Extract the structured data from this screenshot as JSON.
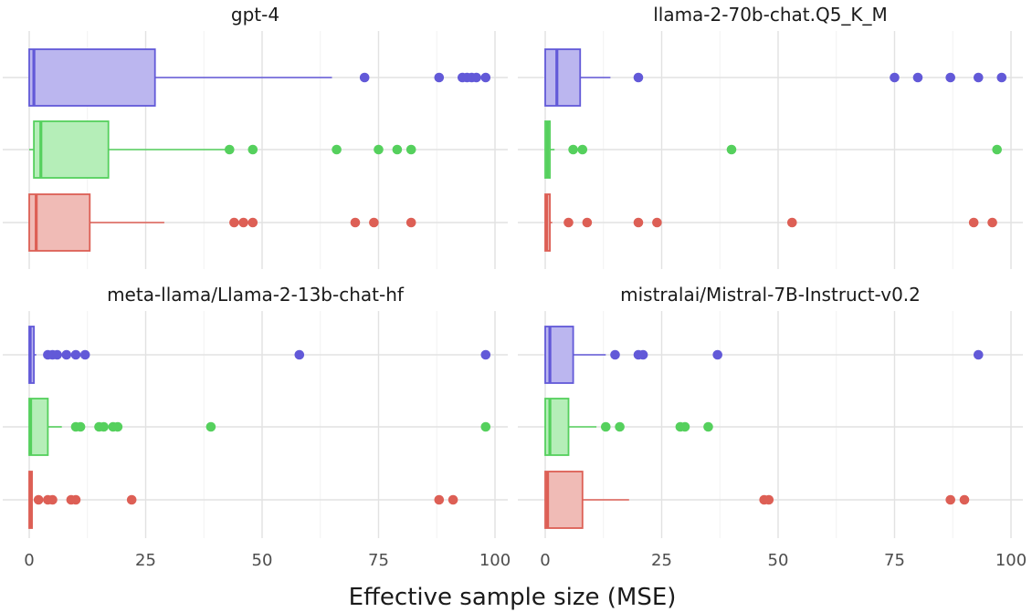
{
  "chart_data": {
    "type": "boxplot",
    "xlabel": "Effective sample size (MSE)",
    "ylabel": "",
    "xlim": [
      -1,
      102
    ],
    "x_ticks": [
      "0",
      "25",
      "50",
      "75",
      "100"
    ],
    "x_tick_values": [
      0,
      25,
      50,
      75,
      100
    ],
    "grid": true,
    "orientation": "horizontal",
    "series_colors": {
      "blue": "#6259d8",
      "green": "#55d05d",
      "red": "#dd5f55"
    },
    "series_fills": {
      "blue": "#bbb6ef",
      "green": "#b5eeb8",
      "red": "#f0bbb6"
    },
    "panels": [
      {
        "title": "gpt-4",
        "boxes": [
          {
            "color": "blue",
            "min": 0,
            "q1": 0,
            "median": 1,
            "q3": 27,
            "max": 65,
            "outliers": [
              72,
              88,
              93,
              94,
              95,
              96,
              98
            ]
          },
          {
            "color": "green",
            "min": 0,
            "q1": 1,
            "median": 2.5,
            "q3": 17,
            "max": 42,
            "outliers": [
              43,
              48,
              66,
              75,
              79,
              82
            ]
          },
          {
            "color": "red",
            "min": 0,
            "q1": 0,
            "median": 1.5,
            "q3": 13,
            "max": 29,
            "outliers": [
              44,
              46,
              48,
              70,
              74,
              82
            ]
          }
        ]
      },
      {
        "title": "llama-2-70b-chat.Q5_K_M",
        "boxes": [
          {
            "color": "blue",
            "min": 0,
            "q1": 0,
            "median": 2.5,
            "q3": 7.5,
            "max": 14,
            "outliers": [
              20,
              75,
              80,
              87,
              93,
              98
            ]
          },
          {
            "color": "green",
            "min": 0,
            "q1": 0,
            "median": 0.5,
            "q3": 1,
            "max": 2,
            "outliers": [
              6,
              8,
              40,
              97
            ]
          },
          {
            "color": "red",
            "min": 0,
            "q1": 0,
            "median": 0.3,
            "q3": 1,
            "max": 1.5,
            "outliers": [
              5,
              9,
              20,
              24,
              53,
              92,
              96
            ]
          }
        ]
      },
      {
        "title": "meta-llama/Llama-2-13b-chat-hf",
        "boxes": [
          {
            "color": "blue",
            "min": 0,
            "q1": 0,
            "median": 0.2,
            "q3": 1,
            "max": 1.5,
            "outliers": [
              4,
              5,
              6,
              8,
              10,
              12,
              58,
              98
            ]
          },
          {
            "color": "green",
            "min": 0,
            "q1": 0,
            "median": 0.3,
            "q3": 4,
            "max": 7,
            "outliers": [
              10,
              11,
              15,
              16,
              18,
              19,
              39,
              98
            ]
          },
          {
            "color": "red",
            "min": 0,
            "q1": 0,
            "median": 0.2,
            "q3": 0.6,
            "max": 0.8,
            "outliers": [
              2,
              4,
              5,
              9,
              10,
              22,
              88,
              91
            ]
          }
        ]
      },
      {
        "title": "mistralai/Mistral-7B-Instruct-v0.2",
        "boxes": [
          {
            "color": "blue",
            "min": 0,
            "q1": 0,
            "median": 1,
            "q3": 6,
            "max": 13,
            "outliers": [
              15,
              20,
              21,
              37,
              93
            ]
          },
          {
            "color": "green",
            "min": 0,
            "q1": 0,
            "median": 1,
            "q3": 5,
            "max": 11,
            "outliers": [
              13,
              16,
              29,
              30,
              35
            ]
          },
          {
            "color": "red",
            "min": 0,
            "q1": 0,
            "median": 0.5,
            "q3": 8,
            "max": 18,
            "outliers": [
              47,
              48,
              87,
              90
            ]
          }
        ]
      }
    ]
  }
}
